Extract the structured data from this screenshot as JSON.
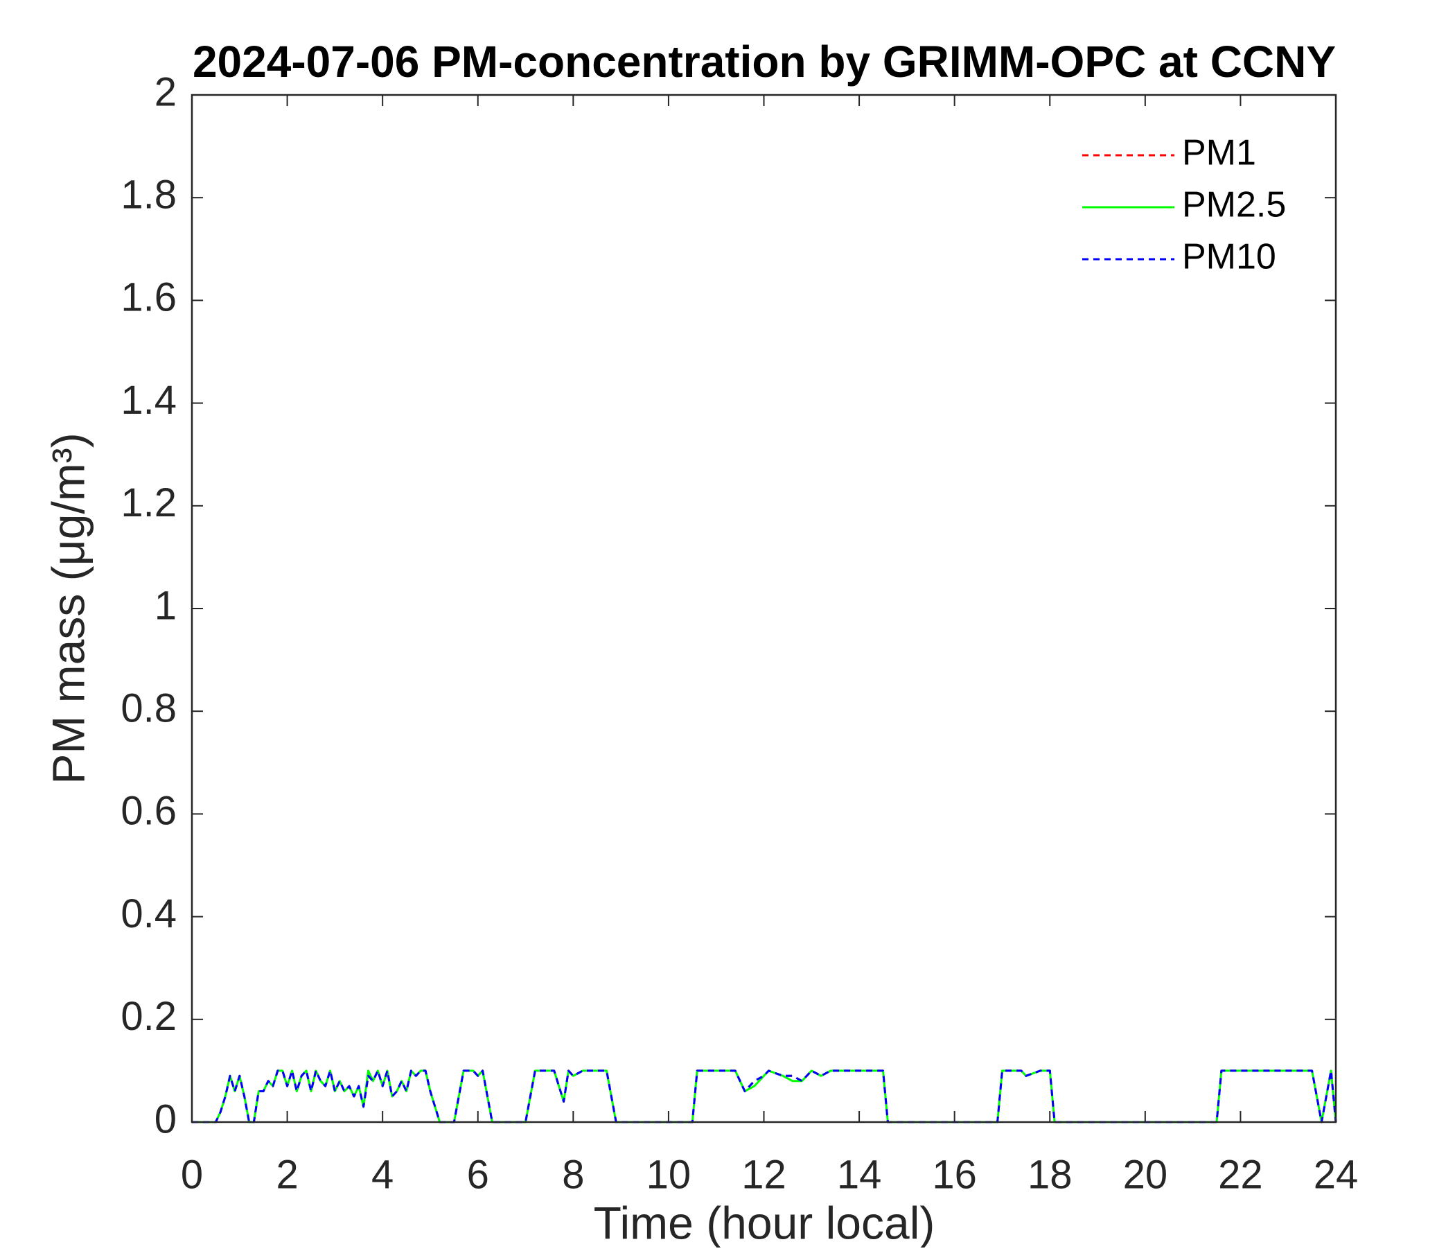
{
  "chart_data": {
    "type": "line",
    "title": "2024-07-06 PM-concentration by GRIMM-OPC at CCNY",
    "x_label": "Time (hour local)",
    "y_label": "PM mass (μg/m³)",
    "xlim": [
      0,
      24
    ],
    "xticks": [
      0,
      2,
      4,
      6,
      8,
      10,
      12,
      14,
      16,
      18,
      20,
      22,
      24
    ],
    "ylim": [
      0,
      2
    ],
    "yticks": [
      0,
      0.2,
      0.4,
      0.6,
      0.8,
      1,
      1.2,
      1.4,
      1.6,
      1.8,
      2
    ],
    "grid": false,
    "legend": "top-right",
    "x": [
      0,
      0.5,
      0.6,
      0.7,
      0.8,
      0.9,
      1.0,
      1.1,
      1.2,
      1.3,
      1.4,
      1.5,
      1.6,
      1.7,
      1.8,
      1.9,
      2.0,
      2.1,
      2.2,
      2.3,
      2.4,
      2.5,
      2.6,
      2.7,
      2.8,
      2.9,
      3.0,
      3.1,
      3.2,
      3.3,
      3.4,
      3.5,
      3.6,
      3.7,
      3.8,
      3.9,
      4.0,
      4.1,
      4.2,
      4.3,
      4.4,
      4.5,
      4.6,
      4.7,
      4.8,
      4.9,
      5.0,
      5.2,
      5.5,
      5.6,
      5.7,
      5.9,
      6.0,
      6.1,
      6.3,
      7.0,
      7.2,
      7.6,
      7.8,
      7.9,
      8.0,
      8.2,
      8.7,
      8.9,
      10.5,
      10.6,
      11.2,
      11.4,
      11.6,
      11.8,
      12.0,
      12.1,
      12.4,
      12.6,
      12.8,
      13.0,
      13.2,
      13.4,
      13.6,
      14.5,
      14.6,
      16.9,
      17.0,
      17.4,
      17.5,
      17.8,
      18.0,
      18.1,
      21.5,
      21.6,
      23.5,
      23.7,
      23.9,
      24.0
    ],
    "series": [
      {
        "name": "PM1",
        "color": "#ff0000",
        "dash": true,
        "values": [
          0,
          0,
          0.02,
          0.05,
          0.09,
          0.06,
          0.09,
          0.05,
          0,
          0,
          0.06,
          0.06,
          0.08,
          0.07,
          0.1,
          0.1,
          0.07,
          0.1,
          0.06,
          0.09,
          0.1,
          0.06,
          0.1,
          0.08,
          0.07,
          0.1,
          0.06,
          0.08,
          0.06,
          0.07,
          0.05,
          0.07,
          0.03,
          0.09,
          0.08,
          0.1,
          0.07,
          0.1,
          0.05,
          0.06,
          0.08,
          0.06,
          0.1,
          0.09,
          0.1,
          0.1,
          0.06,
          0,
          0,
          0.05,
          0.1,
          0.1,
          0.09,
          0.1,
          0,
          0,
          0.1,
          0.1,
          0.04,
          0.1,
          0.09,
          0.1,
          0.1,
          0,
          0,
          0.1,
          0.1,
          0.1,
          0.06,
          0.08,
          0.09,
          0.1,
          0.09,
          0.09,
          0.08,
          0.1,
          0.09,
          0.1,
          0.1,
          0.1,
          0,
          0,
          0.1,
          0.1,
          0.09,
          0.1,
          0.1,
          0,
          0,
          0.1,
          0.1,
          0,
          0.1,
          0
        ]
      },
      {
        "name": "PM2.5",
        "color": "#00ff00",
        "dash": false,
        "values": [
          0,
          0,
          0.02,
          0.05,
          0.09,
          0.06,
          0.09,
          0.05,
          0,
          0,
          0.06,
          0.06,
          0.08,
          0.07,
          0.1,
          0.1,
          0.07,
          0.1,
          0.06,
          0.09,
          0.1,
          0.06,
          0.1,
          0.08,
          0.07,
          0.1,
          0.06,
          0.08,
          0.06,
          0.07,
          0.05,
          0.07,
          0.03,
          0.1,
          0.08,
          0.1,
          0.07,
          0.1,
          0.05,
          0.06,
          0.08,
          0.06,
          0.1,
          0.09,
          0.1,
          0.1,
          0.06,
          0,
          0,
          0.05,
          0.1,
          0.1,
          0.09,
          0.1,
          0,
          0,
          0.1,
          0.1,
          0.04,
          0.1,
          0.09,
          0.1,
          0.1,
          0,
          0,
          0.1,
          0.1,
          0.1,
          0.06,
          0.07,
          0.09,
          0.1,
          0.09,
          0.08,
          0.08,
          0.1,
          0.09,
          0.1,
          0.1,
          0.1,
          0,
          0,
          0.1,
          0.1,
          0.09,
          0.1,
          0.1,
          0,
          0,
          0.1,
          0.1,
          0,
          0.1,
          0
        ]
      },
      {
        "name": "PM10",
        "color": "#0000ff",
        "dash": true,
        "values": [
          0,
          0,
          0.02,
          0.05,
          0.09,
          0.06,
          0.09,
          0.05,
          0,
          0,
          0.06,
          0.06,
          0.08,
          0.07,
          0.1,
          0.1,
          0.07,
          0.1,
          0.06,
          0.09,
          0.1,
          0.06,
          0.1,
          0.08,
          0.07,
          0.1,
          0.06,
          0.08,
          0.06,
          0.07,
          0.05,
          0.07,
          0.03,
          0.09,
          0.08,
          0.1,
          0.07,
          0.1,
          0.05,
          0.06,
          0.08,
          0.06,
          0.1,
          0.09,
          0.1,
          0.1,
          0.06,
          0,
          0,
          0.05,
          0.1,
          0.1,
          0.09,
          0.1,
          0,
          0,
          0.1,
          0.1,
          0.04,
          0.1,
          0.09,
          0.1,
          0.1,
          0,
          0,
          0.1,
          0.1,
          0.1,
          0.06,
          0.08,
          0.09,
          0.1,
          0.09,
          0.09,
          0.08,
          0.1,
          0.09,
          0.1,
          0.1,
          0.1,
          0,
          0,
          0.1,
          0.1,
          0.09,
          0.1,
          0.1,
          0,
          0,
          0.1,
          0.1,
          0,
          0.1,
          0
        ]
      }
    ]
  }
}
